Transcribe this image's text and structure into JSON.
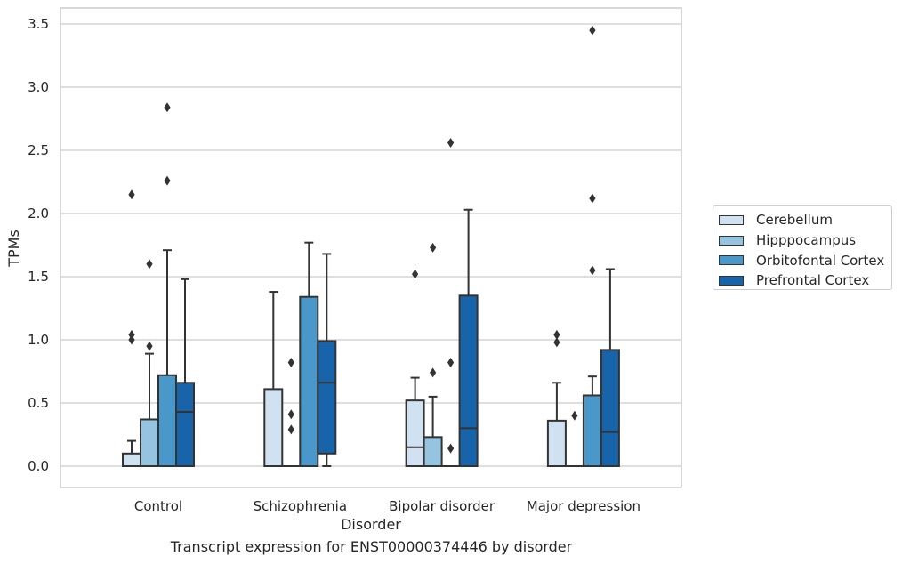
{
  "caption": "Transcript expression for ENST00000374446 by disorder",
  "colors": {
    "Cerebellum": "#d0e1f2",
    "Hipppocampus": "#94c4df",
    "Orbitofontal Cortex": "#4a98c9",
    "Prefrontal Cortex": "#1764ab",
    "line": "#333333",
    "grid": "#cccccc"
  },
  "chart_data": {
    "type": "box",
    "title": "",
    "xlabel": "Disorder",
    "ylabel": "TPMs",
    "ylim": [
      -0.17,
      3.63
    ],
    "yticks": [
      "0.0",
      "0.5",
      "1.0",
      "1.5",
      "2.0",
      "2.5",
      "3.0",
      "3.5"
    ],
    "grid": "horizontal",
    "legend_position": "right",
    "categories": [
      "Control",
      "Schizophrenia",
      "Bipolar disorder",
      "Major depression"
    ],
    "series": [
      {
        "name": "Cerebellum",
        "boxes": [
          {
            "whisker_low": 0.0,
            "q1": 0.0,
            "median": 0.0,
            "q3": 0.1,
            "whisker_high": 0.2,
            "outliers": [
              1.0,
              1.04,
              2.15
            ]
          },
          {
            "whisker_low": 0.0,
            "q1": 0.0,
            "median": 0.0,
            "q3": 0.61,
            "whisker_high": 1.38,
            "outliers": []
          },
          {
            "whisker_low": 0.0,
            "q1": 0.0,
            "median": 0.15,
            "q3": 0.52,
            "whisker_high": 0.7,
            "outliers": [
              1.52
            ]
          },
          {
            "whisker_low": 0.0,
            "q1": 0.0,
            "median": 0.0,
            "q3": 0.36,
            "whisker_high": 0.66,
            "outliers": [
              0.98,
              1.04
            ]
          }
        ]
      },
      {
        "name": "Hipppocampus",
        "boxes": [
          {
            "whisker_low": 0.0,
            "q1": 0.0,
            "median": 0.0,
            "q3": 0.37,
            "whisker_high": 0.89,
            "outliers": [
              0.95,
              1.6
            ]
          },
          {
            "whisker_low": 0.0,
            "q1": 0.0,
            "median": 0.0,
            "q3": 0.0,
            "whisker_high": 0.0,
            "outliers": [
              0.29,
              0.41,
              0.82
            ]
          },
          {
            "whisker_low": 0.0,
            "q1": 0.0,
            "median": 0.0,
            "q3": 0.23,
            "whisker_high": 0.55,
            "outliers": [
              0.74,
              1.73
            ]
          },
          {
            "whisker_low": 0.0,
            "q1": 0.0,
            "median": 0.0,
            "q3": 0.0,
            "whisker_high": 0.0,
            "outliers": [
              0.4
            ]
          }
        ]
      },
      {
        "name": "Orbitofontal Cortex",
        "boxes": [
          {
            "whisker_low": 0.0,
            "q1": 0.0,
            "median": 0.0,
            "q3": 0.72,
            "whisker_high": 1.71,
            "outliers": [
              2.26,
              2.84
            ]
          },
          {
            "whisker_low": 0.0,
            "q1": 0.0,
            "median": 0.0,
            "q3": 1.34,
            "whisker_high": 1.77,
            "outliers": []
          },
          {
            "whisker_low": 0.0,
            "q1": 0.0,
            "median": 0.0,
            "q3": 0.0,
            "whisker_high": 0.0,
            "outliers": [
              0.14,
              0.82,
              2.56
            ]
          },
          {
            "whisker_low": 0.0,
            "q1": 0.0,
            "median": 0.0,
            "q3": 0.56,
            "whisker_high": 0.71,
            "outliers": [
              1.55,
              2.12,
              3.45
            ]
          }
        ]
      },
      {
        "name": "Prefrontal Cortex",
        "boxes": [
          {
            "whisker_low": 0.0,
            "q1": 0.0,
            "median": 0.43,
            "q3": 0.66,
            "whisker_high": 1.48,
            "outliers": []
          },
          {
            "whisker_low": 0.0,
            "q1": 0.1,
            "median": 0.66,
            "q3": 0.99,
            "whisker_high": 1.68,
            "outliers": []
          },
          {
            "whisker_low": 0.0,
            "q1": 0.0,
            "median": 0.3,
            "q3": 1.35,
            "whisker_high": 2.03,
            "outliers": []
          },
          {
            "whisker_low": 0.0,
            "q1": 0.0,
            "median": 0.27,
            "q3": 0.92,
            "whisker_high": 1.56,
            "outliers": []
          }
        ]
      }
    ]
  }
}
